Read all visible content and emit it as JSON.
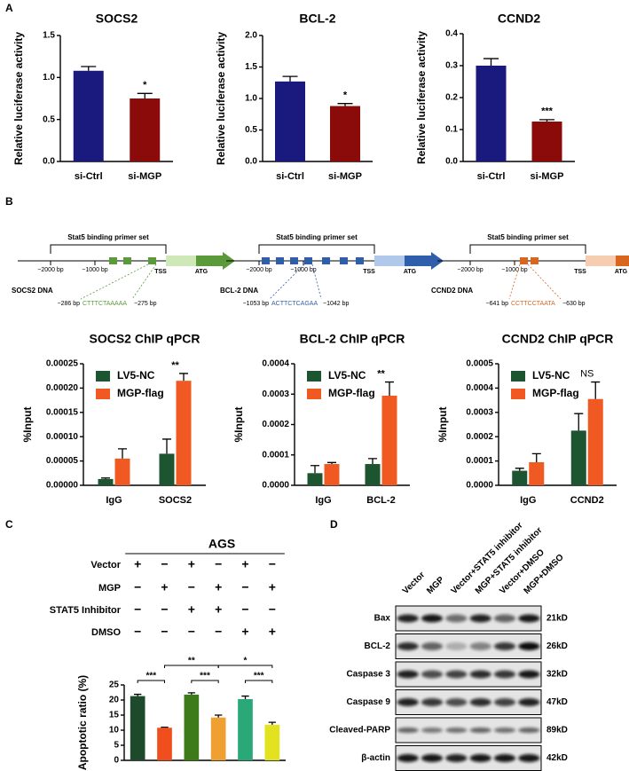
{
  "panel_labels": [
    "A",
    "B",
    "C",
    "D"
  ],
  "chart_data": [
    {
      "type": "bar",
      "title": "SOCS2",
      "ylabel": "Relative luciferase activity",
      "categories": [
        "si-Ctrl",
        "si-MGP"
      ],
      "values": [
        1.08,
        0.75
      ],
      "errors": [
        0.05,
        0.06
      ],
      "colors": [
        "#1a1a7e",
        "#8b0b0b"
      ],
      "ylim": [
        0,
        1.5
      ],
      "yticks": [
        {
          "value": 0,
          "label": "0.0"
        },
        0.5,
        {
          "value": 1,
          "label": "1.0"
        },
        1.5
      ],
      "annotations": [
        {
          "at": 1,
          "text": "*"
        }
      ]
    },
    {
      "type": "bar",
      "title": "BCL-2",
      "ylabel": "Relative luciferase activity",
      "categories": [
        "si-Ctrl",
        "si-MGP"
      ],
      "values": [
        1.27,
        0.88
      ],
      "errors": [
        0.08,
        0.04
      ],
      "colors": [
        "#1a1a7e",
        "#8b0b0b"
      ],
      "ylim": [
        0,
        2
      ],
      "yticks": [
        {
          "value": 0,
          "label": "0.0"
        },
        0.5,
        {
          "value": 1,
          "label": "1.0"
        },
        1.5,
        {
          "value": 2,
          "label": "2.0"
        }
      ],
      "annotations": [
        {
          "at": 1,
          "text": "*"
        }
      ]
    },
    {
      "type": "bar",
      "title": "CCND2",
      "ylabel": "Relative luciferase activity",
      "categories": [
        "si-Ctrl",
        "si-MGP"
      ],
      "values": [
        0.3,
        0.125
      ],
      "errors": [
        0.022,
        0.006
      ],
      "colors": [
        "#1a1a7e",
        "#8b0b0b"
      ],
      "ylim": [
        0,
        0.4
      ],
      "yticks": [
        {
          "value": 0,
          "label": "0.0"
        },
        0.1,
        0.2,
        0.3,
        0.4
      ],
      "annotations": [
        {
          "at": 1,
          "text": "***"
        }
      ]
    },
    {
      "type": "bar",
      "title": "SOCS2 ChIP qPCR",
      "ylabel": "%Input",
      "categories": [
        "IgG",
        "SOCS2"
      ],
      "series": [
        {
          "name": "LV5-NC",
          "color": "#1d5530",
          "values": [
            1.3e-05,
            6.5e-05
          ],
          "errors": [
            2e-06,
            3e-05
          ]
        },
        {
          "name": "MGP-flag",
          "color": "#f05a22",
          "values": [
            5.5e-05,
            0.000215
          ],
          "errors": [
            2e-05,
            1.5e-05
          ]
        }
      ],
      "ylim": [
        0,
        0.00025
      ],
      "yticks": [
        {
          "value": 0,
          "label": "0.00000"
        },
        5e-05,
        {
          "value": 0.0001,
          "label": "0.00010"
        },
        {
          "value": 0.00015,
          "label": "0.00015"
        },
        {
          "value": 0.0002,
          "label": "0.00020"
        },
        {
          "value": 0.00025,
          "label": "0.00025"
        }
      ],
      "annotations": [
        {
          "at": 1,
          "text": "**"
        }
      ]
    },
    {
      "type": "bar",
      "title": "BCL-2 ChIP qPCR",
      "ylabel": "%Input",
      "categories": [
        "IgG",
        "BCL-2"
      ],
      "series": [
        {
          "name": "LV5-NC",
          "color": "#1d5530",
          "values": [
            4e-05,
            7e-05
          ],
          "errors": [
            2.5e-05,
            1.8e-05
          ]
        },
        {
          "name": "MGP-flag",
          "color": "#f05a22",
          "values": [
            7e-05,
            0.000295
          ],
          "errors": [
            5e-06,
            4.5e-05
          ]
        }
      ],
      "ylim": [
        0,
        0.0004
      ],
      "yticks": [
        {
          "value": 0,
          "label": "0.0000"
        },
        0.0001,
        0.0002,
        0.0003,
        0.0004
      ],
      "annotations": [
        {
          "at": 1,
          "text": "**"
        }
      ]
    },
    {
      "type": "bar",
      "title": "CCND2 ChIP qPCR",
      "ylabel": "%Input",
      "categories": [
        "IgG",
        "CCND2"
      ],
      "series": [
        {
          "name": "LV5-NC",
          "color": "#1d5530",
          "values": [
            6e-05,
            0.000225
          ],
          "errors": [
            1e-05,
            7e-05
          ]
        },
        {
          "name": "MGP-flag",
          "color": "#f05a22",
          "values": [
            9.5e-05,
            0.000355
          ],
          "errors": [
            3.5e-05,
            7e-05
          ]
        }
      ],
      "ylim": [
        0,
        0.0005
      ],
      "yticks": [
        {
          "value": 0,
          "label": "0.0000"
        },
        0.0001,
        0.0002,
        0.0003,
        0.0004,
        0.0005
      ],
      "annotations": [
        {
          "at": 1,
          "text": "NS"
        }
      ]
    },
    {
      "type": "bar",
      "title": "AGS",
      "ylabel": "Apoptotic ratio (%)",
      "categories": [
        null,
        null,
        null,
        null,
        null,
        null
      ],
      "values": [
        21.3,
        10.8,
        21.8,
        14.2,
        20.3,
        11.8
      ],
      "errors": [
        0.6,
        0.2,
        0.6,
        0.8,
        1.0,
        0.8
      ],
      "colors": [
        "#1c4a2a",
        "#f04e1c",
        "#3d7a1a",
        "#f0a030",
        "#2aa878",
        "#e2e21e"
      ],
      "ylim": [
        0,
        25
      ],
      "yticks": [
        0,
        5,
        10,
        15,
        20,
        25
      ],
      "conditions": [
        {
          "name": "Vector",
          "signs": [
            "+",
            "−",
            "+",
            "−",
            "+",
            "−"
          ]
        },
        {
          "name": "MGP",
          "signs": [
            "−",
            "+",
            "−",
            "+",
            "−",
            "+"
          ]
        },
        {
          "name": "STAT5 Inhibitor",
          "signs": [
            "−",
            "−",
            "+",
            "+",
            "−",
            "−"
          ]
        },
        {
          "name": "DMSO",
          "signs": [
            "−",
            "−",
            "−",
            "−",
            "+",
            "+"
          ]
        }
      ],
      "brackets": [
        {
          "between": [
            0,
            1
          ],
          "text": "***"
        },
        {
          "between": [
            2,
            3
          ],
          "text": "***"
        },
        {
          "between": [
            4,
            5
          ],
          "text": "***"
        },
        {
          "between": [
            1,
            3
          ],
          "text": "**"
        },
        {
          "between": [
            3,
            5
          ],
          "text": "*"
        }
      ]
    }
  ],
  "gene_diagrams": [
    {
      "header": "Stat5 binding primer set",
      "start": "−2000 bp",
      "mid": "−1000 bp",
      "tss": "TSS",
      "atg": "ATG",
      "name": "SOCS2 DNA",
      "site_start": "−286 bp",
      "sequence": "CTTTCTAAAAA",
      "site_end": "−275 bp",
      "color": "#5a9a3a",
      "light": "#cfe8b8"
    },
    {
      "header": "Stat5 binding primer set",
      "start": "−2000 bp",
      "mid": "−1000 bp",
      "tss": "TSS",
      "atg": "ATG",
      "name": "BCL-2 DNA",
      "site_start": "−1053 bp",
      "sequence": "ACTTCTCAGAA",
      "site_end": "−1042 bp",
      "color": "#2f5faa",
      "light": "#b0c8ea"
    },
    {
      "header": "Stat5 binding primer set",
      "start": "−2000 bp",
      "mid": "−1000 bp",
      "tss": "TSS",
      "atg": "ATG",
      "name": "CCND2 DNA",
      "site_start": "−641 bp",
      "sequence": "CCTTCCTAATA",
      "site_end": "−630 bp",
      "color": "#d8661e",
      "light": "#f6cdb0"
    }
  ],
  "western_blot": {
    "lanes": [
      "Vector",
      "MGP",
      "Vector+STAT5 inhibitor",
      "MGP+STAT5 inhibitor",
      "Vector+DMSO",
      "MGP+DMSO"
    ],
    "rows": [
      {
        "protein": "Bax",
        "size": "21kD"
      },
      {
        "protein": "BCL-2",
        "size": "26kD"
      },
      {
        "protein": "Caspase 3",
        "size": "32kD"
      },
      {
        "protein": "Caspase 9",
        "size": "47kD"
      },
      {
        "protein": "Cleaved-PARP",
        "size": "89kD"
      },
      {
        "protein": "β-actin",
        "size": "42kD"
      }
    ]
  }
}
